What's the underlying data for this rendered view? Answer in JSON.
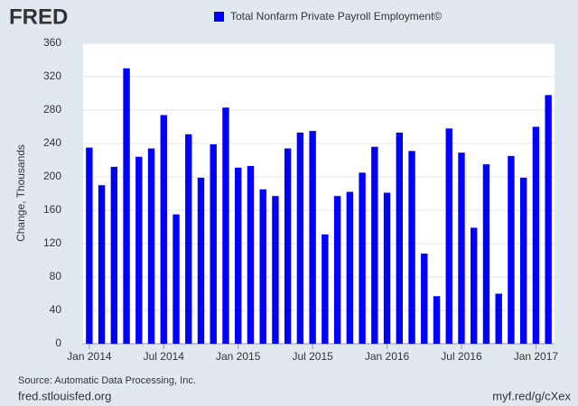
{
  "header": {
    "logo": "FRED"
  },
  "chart_data": {
    "type": "bar",
    "series": [
      {
        "name": "Total Nonfarm Private Payroll Employment©",
        "color": "#0000ff",
        "values": [
          235,
          190,
          212,
          330,
          224,
          234,
          274,
          155,
          251,
          199,
          239,
          283,
          211,
          213,
          185,
          177,
          234,
          253,
          255,
          131,
          177,
          182,
          205,
          236,
          181,
          253,
          231,
          108,
          57,
          258,
          229,
          139,
          215,
          60,
          225,
          199,
          260,
          298
        ]
      }
    ],
    "categories": [
      "Jan 2014",
      null,
      null,
      null,
      null,
      null,
      "Jul 2014",
      null,
      null,
      null,
      null,
      null,
      "Jan 2015",
      null,
      null,
      null,
      null,
      null,
      "Jul 2015",
      null,
      null,
      null,
      null,
      null,
      "Jan 2016",
      null,
      null,
      null,
      null,
      null,
      "Jul 2016",
      null,
      null,
      null,
      null,
      null,
      "Jan 2017",
      null
    ],
    "y_label": "Change, Thousands",
    "ylim": [
      0,
      360
    ],
    "yticks": [
      0,
      40,
      80,
      120,
      160,
      200,
      240,
      280,
      320,
      360
    ],
    "grid": true
  },
  "footer": {
    "source": "Source: Automatic Data Processing, Inc.",
    "site": "fred.stlouisfed.org",
    "link": "myf.red/g/cXex"
  }
}
